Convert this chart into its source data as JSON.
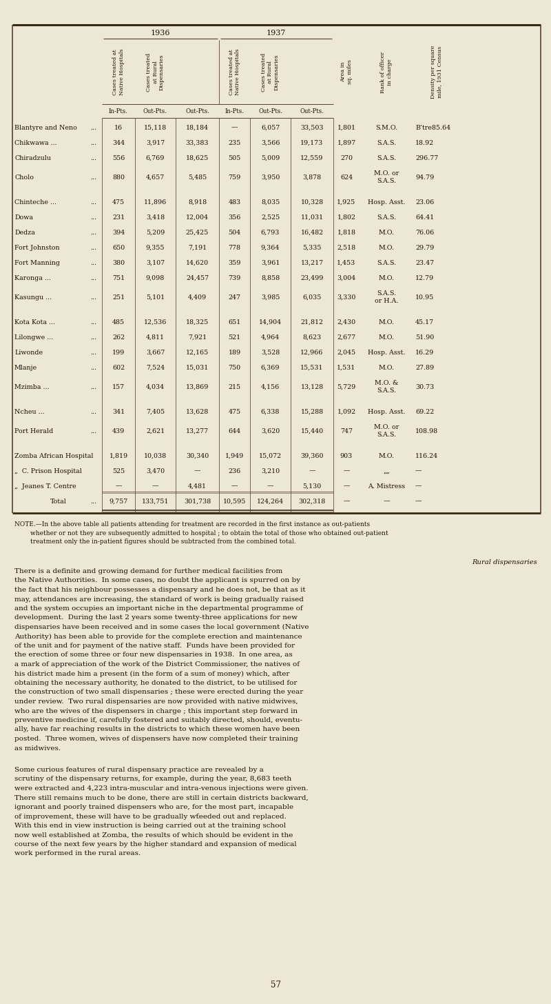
{
  "bg_color": "#ede8d5",
  "rows": [
    [
      "Blantyre and Neno",
      "...",
      "16",
      "15,118",
      "18,184",
      "—",
      "6,057",
      "33,503",
      "1,801",
      "S.M.O.",
      "B’tre85.64"
    ],
    [
      "Chikwawa ...",
      "...",
      "344",
      "3,917",
      "33,383",
      "235",
      "3,566",
      "19,173",
      "1,897",
      "S.A.S.",
      "18.92"
    ],
    [
      "Chiradzulu",
      "...",
      "556",
      "6,769",
      "18,625",
      "505",
      "5,009",
      "12,559",
      "270",
      "S.A.S.",
      "296.77"
    ],
    [
      "Cholo",
      "...",
      "880",
      "4,657",
      "5,485",
      "759",
      "3,950",
      "3,878",
      "624",
      "M.O. or\nS.A.S.",
      "94.79"
    ],
    [
      "Chinteche ...",
      "...",
      "475",
      "11,896",
      "8,918",
      "483",
      "8,035",
      "10,328",
      "1,925",
      "Hosp. Asst.",
      "23.06"
    ],
    [
      "Dowa",
      "...",
      "231",
      "3,418",
      "12,004",
      "356",
      "2,525",
      "11,031",
      "1,802",
      "S.A.S.",
      "64.41"
    ],
    [
      "Dedza",
      "...",
      "394",
      "5,209",
      "25,425",
      "504",
      "6,793",
      "16,482",
      "1,818",
      "M.O.",
      "76.06"
    ],
    [
      "Fort Johnston",
      "...",
      "650",
      "9,355",
      "7,191",
      "778",
      "9,364",
      "5,335",
      "2,518",
      "M.O.",
      "29.79"
    ],
    [
      "Fort Manning",
      "...",
      "380",
      "3,107",
      "14,620",
      "359",
      "3,961",
      "13,217",
      "1,453",
      "S.A.S.",
      "23.47"
    ],
    [
      "Karonga ...",
      "...",
      "751",
      "9,098",
      "24,457",
      "739",
      "8,858",
      "23,499",
      "3,004",
      "M.O.",
      "12.79"
    ],
    [
      "Kasungu ...",
      "...",
      "251",
      "5,101",
      "4,409",
      "247",
      "3,985",
      "6,035",
      "3,330",
      "S.A.S.\nor H.A.",
      "10.95"
    ],
    [
      "Kota Kota ...",
      "...",
      "485",
      "12,536",
      "18,325",
      "651",
      "14,904",
      "21,812",
      "2,430",
      "M.O.",
      "45.17"
    ],
    [
      "Lilongwe ...",
      "...",
      "262",
      "4,811",
      "7,921",
      "521",
      "4,964",
      "8,623",
      "2,677",
      "M.O.",
      "51.90"
    ],
    [
      "Liwonde",
      "...",
      "199",
      "3,667",
      "12,165",
      "189",
      "3,528",
      "12,966",
      "2,045",
      "Hosp. Asst.",
      "16.29"
    ],
    [
      "Mlanje",
      "...",
      "602",
      "7,524",
      "15,031",
      "750",
      "6,369",
      "15,531",
      "1,531",
      "M.O.",
      "27.89"
    ],
    [
      "Mzimba ...",
      "...",
      "157",
      "4,034",
      "13,869",
      "215",
      "4,156",
      "13,128",
      "5,729",
      "M.O. &\nS.A.S.",
      "30.73"
    ],
    [
      "Ncheu ...",
      "...",
      "341",
      "7,405",
      "13,628",
      "475",
      "6,338",
      "15,288",
      "1,092",
      "Hosp. Asst.",
      "69.22"
    ],
    [
      "Port Herald",
      "...",
      "439",
      "2,621",
      "13,277",
      "644",
      "3,620",
      "15,440",
      "747",
      "M.O. or\nS.A.S.",
      "108.98"
    ],
    [
      "Zomba African Hospital",
      "",
      "1,819",
      "10,038",
      "30,340",
      "1,949",
      "15,072",
      "39,360",
      "903",
      "M.O.",
      "116.24"
    ],
    [
      "„  C. Prison Hospital",
      "",
      "525",
      "3,470",
      "—",
      "236",
      "3,210",
      "—",
      "—",
      "„„",
      "—"
    ],
    [
      "„  Jeanes T. Centre",
      "",
      "—",
      "—",
      "4,481",
      "—",
      "—",
      "5,130",
      "—",
      "A. Mistress",
      "—"
    ],
    [
      "Total",
      "...",
      "9,757",
      "133,751",
      "301,738",
      "10,595",
      "124,264",
      "302,318",
      "—",
      "—",
      "—"
    ]
  ],
  "extra_space_after": [
    3,
    10,
    15,
    17
  ],
  "note_text": "NOTE.—In  the  above  table  all  patients  attending  for  treatment  are  recorded  in  the  first  instance  as  out-patients\n        whether  or  not  they  are  subsequently  admitted  to  hospital ;  to  obtain  the  total  of  those  who  obtained  out-patient\n        treatment  only  the  in-patient  figures  should  be  subtracted  from  the  combined  total.",
  "body_text": "There is a definite and growing demand for further medical facilities from",
  "right_label": "Rural dispensaries",
  "page_number": "57"
}
